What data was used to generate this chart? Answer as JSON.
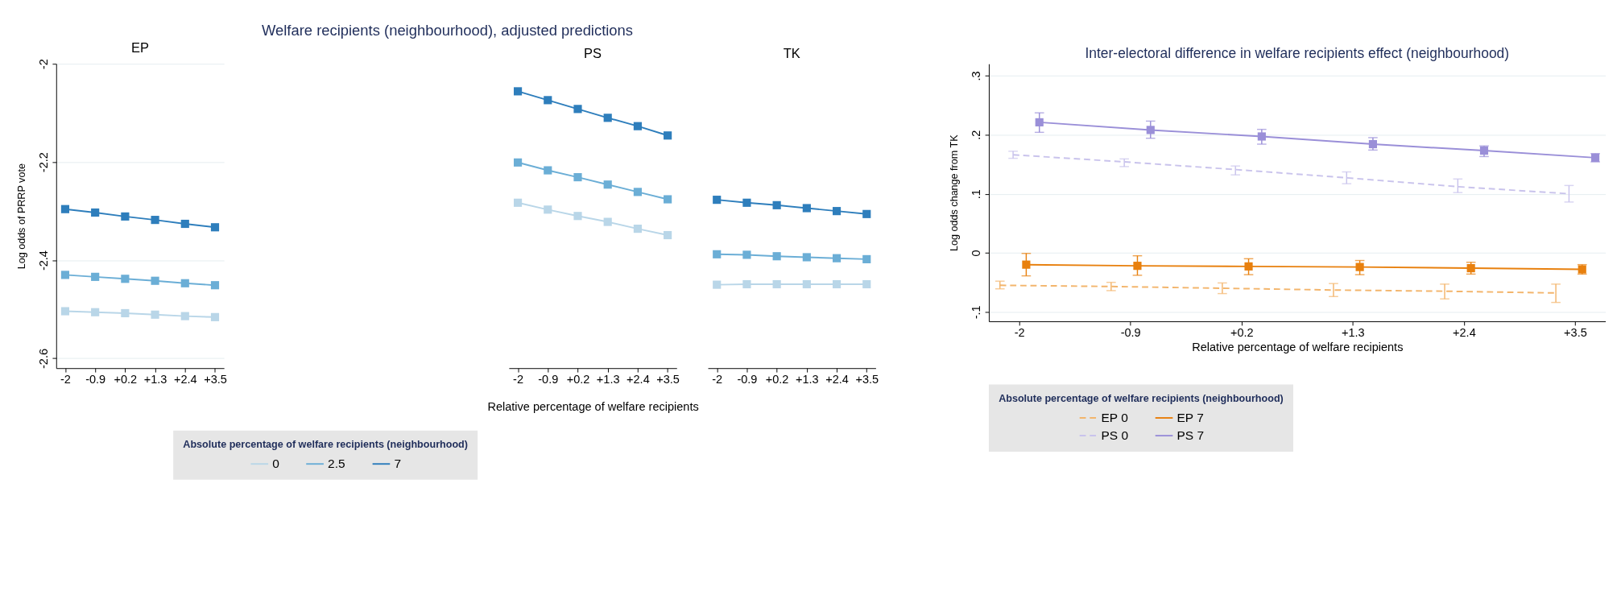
{
  "chart_data": [
    {
      "type": "line",
      "subtitle": "EP",
      "ylabel": "Log odds of PRRP vote",
      "categories": [
        "-2",
        "-0.9",
        "+0.2",
        "+1.3",
        "+2.4",
        "+3.5"
      ],
      "ylim": [
        -2.62,
        -2
      ],
      "yticks": [
        -2,
        -2.2,
        -2.4,
        -2.6
      ],
      "grid": "y",
      "marker": "square",
      "legend": "bottom",
      "legend_title": "Absolute percentage of welfare recipients (neighbourhood)",
      "series": [
        {
          "name": "0",
          "color": "#b9d6e8",
          "values": [
            -2.504,
            -2.506,
            -2.508,
            -2.511,
            -2.514,
            -2.516
          ]
        },
        {
          "name": "2.5",
          "color": "#6baed6",
          "values": [
            -2.43,
            -2.434,
            -2.438,
            -2.442,
            -2.447,
            -2.451
          ]
        },
        {
          "name": "7",
          "color": "#2e7ebc",
          "values": [
            -2.296,
            -2.303,
            -2.311,
            -2.318,
            -2.326,
            -2.333
          ]
        }
      ]
    },
    {
      "type": "line",
      "title": "Welfare recipients (neighbourhood), adjusted predictions",
      "subtitle": "PS",
      "xlabel": "Relative percentage of welfare recipients",
      "categories": [
        "-2",
        "-0.9",
        "+0.2",
        "+1.3",
        "+2.4",
        "+3.5"
      ],
      "ylim": [
        -2.62,
        -2
      ],
      "tick_labels": "x",
      "grid": "y",
      "marker": "square",
      "series": [
        {
          "color": "#b9d6e8",
          "values": [
            -2.283,
            -2.297,
            -2.31,
            -2.322,
            -2.336,
            -2.349
          ]
        },
        {
          "color": "#6baed6",
          "values": [
            -2.201,
            -2.217,
            -2.231,
            -2.246,
            -2.261,
            -2.276
          ]
        },
        {
          "color": "#2e7ebc",
          "values": [
            -2.056,
            -2.074,
            -2.092,
            -2.11,
            -2.127,
            -2.146
          ]
        }
      ]
    },
    {
      "type": "line",
      "subtitle": "TK",
      "categories": [
        "-2",
        "-0.9",
        "+0.2",
        "+1.3",
        "+2.4",
        "+3.5"
      ],
      "ylim": [
        -2.62,
        -2
      ],
      "tick_labels": "x",
      "grid": "y",
      "marker": "square",
      "legend": false,
      "series": [
        {
          "color": "#b9d6e8",
          "values": [
            -2.45,
            -2.449,
            -2.449,
            -2.449,
            -2.449,
            -2.449
          ]
        },
        {
          "color": "#6baed6",
          "values": [
            -2.388,
            -2.389,
            -2.392,
            -2.394,
            -2.396,
            -2.398
          ]
        },
        {
          "color": "#2e7ebc",
          "values": [
            -2.277,
            -2.283,
            -2.288,
            -2.294,
            -2.3,
            -2.306
          ]
        }
      ]
    },
    {
      "type": "line",
      "title": "Inter-electoral difference in welfare recipients effect (neighbourhood)",
      "xlabel": "Relative percentage of welfare recipients",
      "ylabel": "Log odds change from TK",
      "legend_title": "Absolute percentage of welfare recipients (neighbourhood)",
      "xlim": [
        -2.3,
        3.8
      ],
      "xticks": [
        -2,
        {
          "value": -0.9,
          "label": "-0.9"
        },
        {
          "value": 0.2,
          "label": "+0.2"
        },
        {
          "value": 1.3,
          "label": "+1.3"
        },
        {
          "value": 2.4,
          "label": "+2.4"
        },
        {
          "value": 3.5,
          "label": "+3.5"
        }
      ],
      "ylim": [
        -0.116,
        0.32
      ],
      "yticks": [
        {
          "value": -0.1,
          "label": "-.1"
        },
        0,
        {
          "value": 0.1,
          "label": ".1"
        },
        {
          "value": 0.2,
          "label": ".2"
        },
        {
          "value": 0.3,
          "label": ".3"
        }
      ],
      "grid": "y",
      "legend": "bottom",
      "series": [
        {
          "name": "EP 0",
          "color": "#f3b56c",
          "line_style": "dashed",
          "marker": "none",
          "x": [
            -2.19,
            -1.09,
            0.01,
            1.11,
            2.21,
            3.31
          ],
          "values": [
            -0.055,
            -0.057,
            -0.06,
            -0.063,
            -0.065,
            -0.068
          ],
          "errors": [
            [
              -0.061,
              -0.048
            ],
            [
              -0.064,
              -0.05
            ],
            [
              -0.069,
              -0.051
            ],
            [
              -0.074,
              -0.052
            ],
            [
              -0.078,
              -0.053
            ],
            [
              -0.084,
              -0.053
            ]
          ]
        },
        {
          "name": "EP 7",
          "color": "#e8800e",
          "line_style": "solid",
          "marker": "square",
          "x": [
            -1.93,
            -0.83,
            0.27,
            1.37,
            2.47,
            3.57
          ],
          "values": [
            -0.02,
            -0.022,
            -0.023,
            -0.024,
            -0.026,
            -0.028
          ],
          "errors": [
            [
              -0.039,
              -0.001
            ],
            [
              -0.038,
              -0.005
            ],
            [
              -0.037,
              -0.01
            ],
            [
              -0.037,
              -0.013
            ],
            [
              -0.036,
              -0.016
            ],
            [
              -0.036,
              -0.02
            ]
          ]
        },
        {
          "name": "PS 0",
          "color": "#c9c3ec",
          "line_style": "dashed",
          "marker": "none",
          "x": [
            -2.06,
            -0.96,
            0.14,
            1.24,
            2.34,
            3.44
          ],
          "values": [
            0.166,
            0.154,
            0.141,
            0.127,
            0.112,
            0.1
          ],
          "errors": [
            [
              0.16,
              0.172
            ],
            [
              0.146,
              0.159
            ],
            [
              0.132,
              0.147
            ],
            [
              0.117,
              0.137
            ],
            [
              0.102,
              0.125
            ],
            [
              0.086,
              0.114
            ]
          ]
        },
        {
          "name": "PS 7",
          "color": "#9a8fd8",
          "line_style": "solid",
          "marker": "square",
          "x": [
            -1.8,
            -0.7,
            0.4,
            1.5,
            2.6,
            3.7
          ],
          "values": [
            0.221,
            0.208,
            0.197,
            0.184,
            0.173,
            0.161
          ],
          "errors": [
            [
              0.204,
              0.237
            ],
            [
              0.194,
              0.223
            ],
            [
              0.184,
              0.209
            ],
            [
              0.174,
              0.195
            ],
            [
              0.163,
              0.181
            ],
            [
              0.154,
              0.168
            ]
          ]
        }
      ]
    }
  ]
}
